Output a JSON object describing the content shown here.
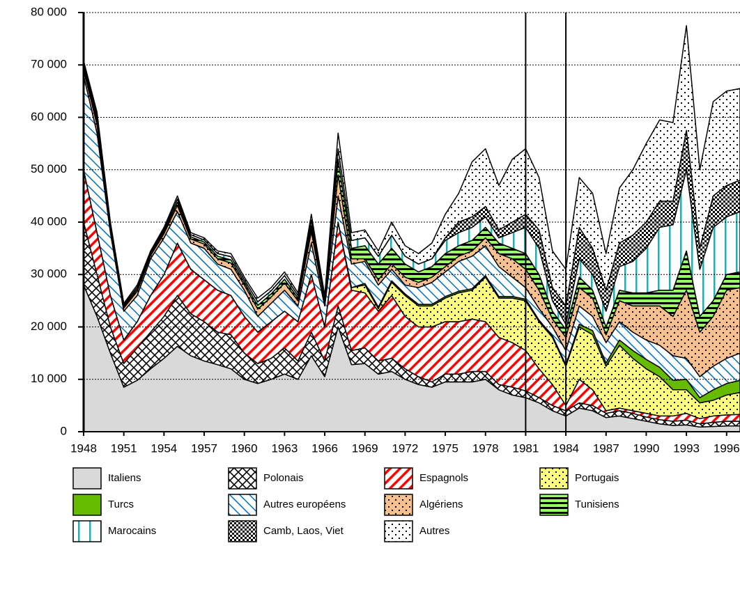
{
  "chart_data": {
    "type": "stacked_area",
    "x": [
      1948,
      1949,
      1950,
      1951,
      1952,
      1953,
      1954,
      1955,
      1956,
      1957,
      1958,
      1959,
      1960,
      1961,
      1962,
      1963,
      1964,
      1965,
      1966,
      1967,
      1968,
      1969,
      1970,
      1971,
      1972,
      1973,
      1974,
      1975,
      1976,
      1977,
      1978,
      1979,
      1980,
      1981,
      1982,
      1983,
      1984,
      1985,
      1986,
      1987,
      1988,
      1989,
      1990,
      1991,
      1992,
      1993,
      1994,
      1995,
      1996,
      1997
    ],
    "xlim": [
      1948,
      1997
    ],
    "xticks": [
      1948,
      1951,
      1954,
      1957,
      1960,
      1963,
      1966,
      1969,
      1972,
      1975,
      1978,
      1981,
      1984,
      1987,
      1990,
      1993,
      1996
    ],
    "ylim": [
      0,
      80000
    ],
    "yticks": [
      {
        "value": 0,
        "label": "0"
      },
      {
        "value": 10000,
        "label": "10 000"
      },
      {
        "value": 20000,
        "label": "20 000"
      },
      {
        "value": 30000,
        "label": "30 000"
      },
      {
        "value": 40000,
        "label": "40 000"
      },
      {
        "value": 50000,
        "label": "50 000"
      },
      {
        "value": 60000,
        "label": "60 000"
      },
      {
        "value": 70000,
        "label": "70 000"
      },
      {
        "value": 80000,
        "label": "80 000"
      }
    ],
    "grid": true,
    "vlines": [
      1981,
      1984
    ],
    "series": [
      {
        "name": "Italiens",
        "color": "#d9d9d9",
        "hatch": "solid",
        "values": [
          28000,
          22000,
          15000,
          8500,
          9800,
          12000,
          14000,
          16300,
          14500,
          13500,
          12800,
          12000,
          10000,
          9200,
          10000,
          11000,
          10000,
          14500,
          10500,
          20000,
          12800,
          13000,
          11000,
          11500,
          10000,
          9000,
          8500,
          9500,
          9500,
          9500,
          10000,
          8000,
          7000,
          6500,
          5500,
          4000,
          3000,
          4500,
          4000,
          2700,
          3000,
          2500,
          2000,
          1500,
          1200,
          1300,
          900,
          1000,
          1100,
          1100
        ]
      },
      {
        "name": "Polonais",
        "color": "#000000",
        "hatch": "cross",
        "values": [
          12000,
          8000,
          5000,
          4500,
          6200,
          7000,
          8000,
          9700,
          8000,
          7500,
          6200,
          6500,
          5000,
          3800,
          4000,
          5000,
          3500,
          4500,
          3000,
          4000,
          2700,
          3000,
          2500,
          2500,
          2000,
          1500,
          1000,
          1500,
          1500,
          2000,
          1500,
          1000,
          1500,
          1300,
          1000,
          1000,
          1000,
          1000,
          1000,
          800,
          1000,
          1000,
          800,
          800,
          800,
          900,
          600,
          800,
          900,
          900
        ]
      },
      {
        "name": "Espagnols",
        "color": "#ff0000",
        "hatch": "slash",
        "values": [
          10000,
          8000,
          6000,
          4500,
          5000,
          7000,
          8000,
          10000,
          8500,
          8000,
          8000,
          7500,
          7000,
          6000,
          7000,
          7000,
          7500,
          11000,
          6500,
          16000,
          11500,
          10500,
          9500,
          12000,
          10000,
          9500,
          10500,
          10000,
          10000,
          10000,
          9500,
          9000,
          8500,
          7700,
          5500,
          4000,
          1000,
          4500,
          3000,
          500,
          500,
          500,
          700,
          700,
          1000,
          1300,
          1000,
          1200,
          1200,
          1300
        ]
      },
      {
        "name": "Portugais",
        "color": "#ffff80",
        "hatch": "dots",
        "values": [
          0,
          0,
          0,
          0,
          0,
          0,
          0,
          0,
          0,
          0,
          0,
          0,
          0,
          0,
          0,
          0,
          0,
          0,
          0,
          0,
          500,
          1500,
          500,
          2500,
          4000,
          4000,
          4000,
          4500,
          5500,
          5500,
          8500,
          7500,
          8500,
          9500,
          9000,
          9000,
          7500,
          10000,
          10500,
          8500,
          12000,
          10000,
          8500,
          7500,
          5000,
          4500,
          3000,
          3000,
          3800,
          4200
        ]
      },
      {
        "name": "Turcs",
        "color": "#66bb00",
        "hatch": "solid",
        "values": [
          0,
          0,
          0,
          0,
          0,
          0,
          0,
          0,
          0,
          0,
          0,
          0,
          0,
          0,
          0,
          0,
          0,
          0,
          0,
          0,
          0,
          300,
          300,
          300,
          300,
          300,
          300,
          300,
          300,
          300,
          300,
          300,
          300,
          300,
          300,
          300,
          300,
          500,
          800,
          600,
          1000,
          1500,
          1800,
          1800,
          1800,
          2000,
          1000,
          2000,
          2200,
          2300
        ]
      },
      {
        "name": "Autres européens",
        "color": "#0070c0",
        "hatch": "backslash",
        "values": [
          18000,
          19000,
          12000,
          5500,
          5000,
          7000,
          7000,
          6000,
          5000,
          6000,
          5000,
          5000,
          5000,
          3000,
          3500,
          4000,
          3000,
          6000,
          4000,
          5000,
          4500,
          4200,
          4200,
          2200,
          1700,
          3200,
          4200,
          4700,
          5700,
          6200,
          5700,
          5700,
          3700,
          2200,
          2200,
          1700,
          2700,
          3500,
          2700,
          3900,
          3500,
          3500,
          3700,
          4200,
          4700,
          4000,
          4000,
          4500,
          4800,
          5200
        ]
      },
      {
        "name": "Algériens",
        "color": "#f9c08f",
        "hatch": "dots",
        "values": [
          1100,
          1600,
          800,
          600,
          800,
          600,
          800,
          1200,
          800,
          800,
          1000,
          1200,
          1000,
          1400,
          1200,
          1400,
          1000,
          2200,
          800,
          4000,
          1000,
          500,
          1000,
          1000,
          1500,
          1000,
          1000,
          1000,
          1000,
          1000,
          1500,
          2500,
          3500,
          3500,
          3500,
          1500,
          2500,
          3500,
          3500,
          1500,
          4000,
          5000,
          6500,
          7500,
          7500,
          13000,
          8500,
          9500,
          13000,
          12500
        ]
      },
      {
        "name": "Tunisiens",
        "color": "#99ff66",
        "hatch": "stripes",
        "values": [
          600,
          800,
          400,
          300,
          400,
          300,
          400,
          600,
          400,
          400,
          500,
          600,
          500,
          700,
          600,
          700,
          500,
          1100,
          400,
          3000,
          2000,
          2500,
          3000,
          3000,
          2500,
          2000,
          2000,
          2500,
          2000,
          2000,
          2000,
          2000,
          2000,
          3000,
          3000,
          1500,
          1500,
          2000,
          1500,
          1500,
          2000,
          2500,
          2500,
          3000,
          5000,
          7500,
          3000,
          3000,
          3000,
          3000
        ]
      },
      {
        "name": "Marocains",
        "color": "#20b2aa",
        "hatch": "vlines",
        "values": [
          500,
          800,
          400,
          300,
          400,
          300,
          400,
          600,
          400,
          400,
          500,
          600,
          500,
          700,
          600,
          700,
          500,
          1100,
          400,
          2000,
          1500,
          1500,
          1500,
          2500,
          1500,
          1500,
          1500,
          2500,
          2500,
          2500,
          2000,
          1000,
          3000,
          5000,
          5000,
          2000,
          1000,
          3500,
          3000,
          3000,
          4500,
          6000,
          8500,
          12000,
          12500,
          15500,
          9000,
          14000,
          11000,
          11500
        ]
      },
      {
        "name": "Camb, Laos, Viet",
        "color": "#000000",
        "hatch": "checker",
        "values": [
          0,
          0,
          0,
          0,
          0,
          0,
          0,
          0,
          0,
          0,
          0,
          0,
          0,
          0,
          0,
          0,
          0,
          0,
          0,
          0,
          0,
          0,
          0,
          0,
          0,
          0,
          0,
          500,
          2000,
          2000,
          2000,
          1500,
          2000,
          2500,
          3500,
          2500,
          3500,
          6000,
          5000,
          4000,
          4500,
          5000,
          5000,
          5000,
          4500,
          7500,
          4000,
          6000,
          6000,
          6000
        ]
      },
      {
        "name": "Autres",
        "color": "#ffffff",
        "hatch": "dots",
        "values": [
          600,
          800,
          400,
          300,
          400,
          300,
          400,
          600,
          400,
          400,
          500,
          600,
          500,
          700,
          600,
          700,
          500,
          1100,
          400,
          3000,
          1500,
          1500,
          1000,
          2500,
          2000,
          2000,
          3000,
          4500,
          5500,
          10500,
          11000,
          8500,
          12000,
          12500,
          10000,
          7000,
          7000,
          9500,
          10500,
          7000,
          10500,
          12500,
          15000,
          15500,
          15000,
          20000,
          15000,
          18000,
          18000,
          17500
        ]
      }
    ]
  }
}
